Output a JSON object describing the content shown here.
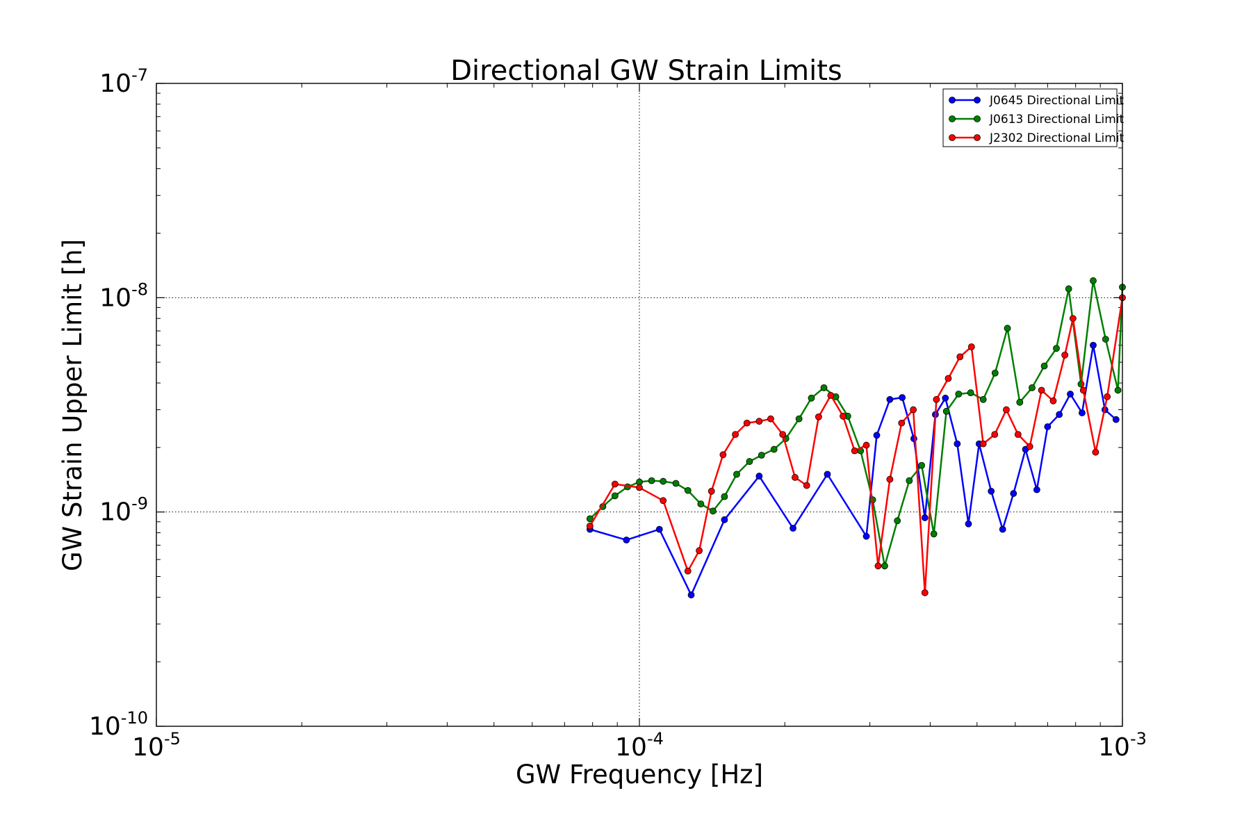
{
  "chart_data": {
    "type": "line",
    "title": "Directional GW Strain Limits",
    "xlabel": "GW Frequency [Hz]",
    "ylabel": "GW Strain Upper Limit [h]",
    "xscale": "log",
    "yscale": "log",
    "xlim": [
      1e-05,
      0.001
    ],
    "ylim": [
      1e-10,
      1e-07
    ],
    "grid": true,
    "legend_position": "top-right",
    "x_ticks": [
      {
        "value": 1e-05,
        "base": "10",
        "exp": "-5"
      },
      {
        "value": 0.0001,
        "base": "10",
        "exp": "-4"
      },
      {
        "value": 0.001,
        "base": "10",
        "exp": "-3"
      }
    ],
    "y_ticks": [
      {
        "value": 1e-10,
        "base": "10",
        "exp": "-10"
      },
      {
        "value": 1e-09,
        "base": "10",
        "exp": "-9"
      },
      {
        "value": 1e-08,
        "base": "10",
        "exp": "-8"
      },
      {
        "value": 1e-07,
        "base": "10",
        "exp": "-7"
      }
    ],
    "series": [
      {
        "name": "J0645 Directional Limit",
        "color": "#0000ff",
        "points": [
          [
            7.9e-05,
            8.3e-10
          ],
          [
            9.4e-05,
            7.4e-10
          ],
          [
            0.00011,
            8.3e-10
          ],
          [
            0.000128,
            4.1e-10
          ],
          [
            0.00015,
            9.2e-10
          ],
          [
            0.000177,
            1.47e-09
          ],
          [
            0.000208,
            8.4e-10
          ],
          [
            0.000245,
            1.5e-09
          ],
          [
            0.000295,
            7.7e-10
          ],
          [
            0.00031,
            2.28e-09
          ],
          [
            0.00033,
            3.35e-09
          ],
          [
            0.00035,
            3.42e-09
          ],
          [
            0.00037,
            2.2e-09
          ],
          [
            0.00039,
            9.4e-10
          ],
          [
            0.00041,
            2.85e-09
          ],
          [
            0.00043,
            3.4e-09
          ],
          [
            0.000455,
            2.08e-09
          ],
          [
            0.00048,
            8.8e-10
          ],
          [
            0.000505,
            2.08e-09
          ],
          [
            0.000535,
            1.25e-09
          ],
          [
            0.000565,
            8.3e-10
          ],
          [
            0.000595,
            1.22e-09
          ],
          [
            0.00063,
            1.96e-09
          ],
          [
            0.000665,
            1.27e-09
          ],
          [
            0.0007,
            2.5e-09
          ],
          [
            0.00074,
            2.85e-09
          ],
          [
            0.00078,
            3.55e-09
          ],
          [
            0.000825,
            2.9e-09
          ],
          [
            0.00087,
            6e-09
          ],
          [
            0.00092,
            3e-09
          ],
          [
            0.00097,
            2.7e-09
          ]
        ]
      },
      {
        "name": "J0613 Directional Limit",
        "color": "#007f00",
        "points": [
          [
            7.9e-05,
            9.3e-10
          ],
          [
            8.4e-05,
            1.06e-09
          ],
          [
            8.9e-05,
            1.19e-09
          ],
          [
            9.45e-05,
            1.31e-09
          ],
          [
            0.0001,
            1.38e-09
          ],
          [
            0.000106,
            1.4e-09
          ],
          [
            0.000112,
            1.39e-09
          ],
          [
            0.000119,
            1.36e-09
          ],
          [
            0.000126,
            1.26e-09
          ],
          [
            0.000134,
            1.09e-09
          ],
          [
            0.000142,
            1.01e-09
          ],
          [
            0.00015,
            1.18e-09
          ],
          [
            0.000159,
            1.5e-09
          ],
          [
            0.000169,
            1.72e-09
          ],
          [
            0.000179,
            1.84e-09
          ],
          [
            0.00019,
            1.96e-09
          ],
          [
            0.000201,
            2.2e-09
          ],
          [
            0.000214,
            2.72e-09
          ],
          [
            0.000227,
            3.4e-09
          ],
          [
            0.000241,
            3.8e-09
          ],
          [
            0.000255,
            3.45e-09
          ],
          [
            0.00027,
            2.8e-09
          ],
          [
            0.000287,
            1.93e-09
          ],
          [
            0.000304,
            1.14e-09
          ],
          [
            0.000322,
            5.6e-10
          ],
          [
            0.000342,
            9.1e-10
          ],
          [
            0.000362,
            1.4e-09
          ],
          [
            0.000384,
            1.65e-09
          ],
          [
            0.000407,
            7.9e-10
          ],
          [
            0.000432,
            2.95e-09
          ],
          [
            0.000458,
            3.55e-09
          ],
          [
            0.000485,
            3.6e-09
          ],
          [
            0.000515,
            3.35e-09
          ],
          [
            0.000545,
            4.45e-09
          ],
          [
            0.000578,
            7.2e-09
          ],
          [
            0.000613,
            3.25e-09
          ],
          [
            0.00065,
            3.8e-09
          ],
          [
            0.000689,
            4.8e-09
          ],
          [
            0.00073,
            5.8e-09
          ],
          [
            0.000774,
            1.1e-08
          ],
          [
            0.000821,
            3.95e-09
          ],
          [
            0.00087,
            1.2e-08
          ],
          [
            0.000923,
            6.4e-09
          ],
          [
            0.000979,
            3.7e-09
          ],
          [
            0.001,
            1.12e-08
          ]
        ]
      },
      {
        "name": "J2302 Directional Limit",
        "color": "#ff0000",
        "points": [
          [
            7.9e-05,
            8.6e-10
          ],
          [
            8.9e-05,
            1.35e-09
          ],
          [
            0.0001,
            1.3e-09
          ],
          [
            0.000112,
            1.13e-09
          ],
          [
            0.000126,
            5.3e-10
          ],
          [
            0.000133,
            6.6e-10
          ],
          [
            0.000141,
            1.25e-09
          ],
          [
            0.000149,
            1.85e-09
          ],
          [
            0.000158,
            2.3e-09
          ],
          [
            0.000167,
            2.6e-09
          ],
          [
            0.000177,
            2.65e-09
          ],
          [
            0.000187,
            2.72e-09
          ],
          [
            0.000198,
            2.3e-09
          ],
          [
            0.00021,
            1.45e-09
          ],
          [
            0.000222,
            1.33e-09
          ],
          [
            0.000235,
            2.78e-09
          ],
          [
            0.000249,
            3.5e-09
          ],
          [
            0.000264,
            2.8e-09
          ],
          [
            0.000279,
            1.93e-09
          ],
          [
            0.000295,
            2.05e-09
          ],
          [
            0.000312,
            5.6e-10
          ],
          [
            0.00033,
            1.42e-09
          ],
          [
            0.000349,
            2.6e-09
          ],
          [
            0.000369,
            3e-09
          ],
          [
            0.00039,
            4.2e-10
          ],
          [
            0.000412,
            3.35e-09
          ],
          [
            0.000436,
            4.2e-09
          ],
          [
            0.000461,
            5.3e-09
          ],
          [
            0.000487,
            5.9e-09
          ],
          [
            0.000515,
            2.08e-09
          ],
          [
            0.000544,
            2.3e-09
          ],
          [
            0.000575,
            3e-09
          ],
          [
            0.000608,
            2.3e-09
          ],
          [
            0.000643,
            2.02e-09
          ],
          [
            0.00068,
            3.7e-09
          ],
          [
            0.000719,
            3.3e-09
          ],
          [
            0.00076,
            5.4e-09
          ],
          [
            0.00079,
            8e-09
          ],
          [
            0.00083,
            3.7e-09
          ],
          [
            0.00088,
            1.9e-09
          ],
          [
            0.00093,
            3.45e-09
          ],
          [
            0.001,
            1e-08
          ]
        ]
      }
    ]
  }
}
